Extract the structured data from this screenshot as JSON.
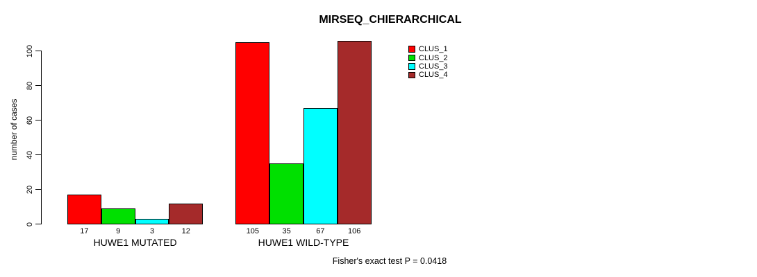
{
  "chart_data": {
    "type": "bar",
    "title": "MIRSEQ_CHIERARCHICAL",
    "ylabel": "number of cases",
    "xlabel": "",
    "ylim": [
      0,
      106
    ],
    "y_ticks": [
      0,
      20,
      40,
      60,
      80,
      100
    ],
    "grid": false,
    "legend_position": "top-right-inside",
    "categories": [
      "HUWE1 MUTATED",
      "HUWE1 WILD-TYPE"
    ],
    "series": [
      {
        "name": "CLUS_1",
        "color": "#ff0000",
        "values": [
          17,
          105
        ]
      },
      {
        "name": "CLUS_2",
        "color": "#00e000",
        "values": [
          9,
          35
        ]
      },
      {
        "name": "CLUS_3",
        "color": "#00ffff",
        "values": [
          3,
          67
        ]
      },
      {
        "name": "CLUS_4",
        "color": "#a52a2a",
        "values": [
          12,
          106
        ]
      }
    ],
    "bar_value_labels": [
      [
        "17",
        "9",
        "3",
        "12"
      ],
      [
        "105",
        "35",
        "67",
        "106"
      ]
    ],
    "annotation": "Fisher's exact test P = 0.0418"
  }
}
